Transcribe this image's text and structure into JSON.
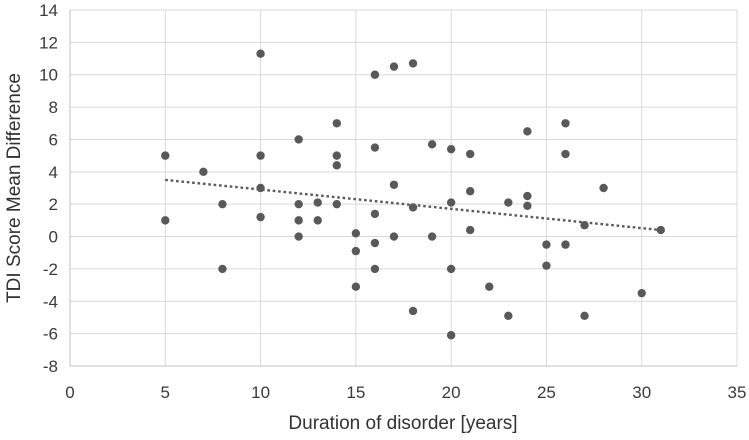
{
  "chart_data": {
    "type": "scatter",
    "title": "",
    "xlabel": "Duration of disorder [years]",
    "ylabel": "TDI Score Mean Difference",
    "xlim": [
      0,
      35
    ],
    "ylim": [
      -8,
      14
    ],
    "xticks": [
      0,
      5,
      10,
      15,
      20,
      25,
      30,
      35
    ],
    "yticks": [
      -8,
      -6,
      -4,
      -2,
      0,
      2,
      4,
      6,
      8,
      10,
      12,
      14
    ],
    "grid": true,
    "legend_position": "none",
    "marker_color": "#595959",
    "gridline_color": "#d9d9d9",
    "axis_line_color": "#c0c0c0",
    "tick_label_color": "#3a3a3a",
    "axis_title_color": "#323232",
    "points": [
      [
        5,
        5
      ],
      [
        5,
        1
      ],
      [
        7,
        4
      ],
      [
        8,
        2
      ],
      [
        8,
        -2
      ],
      [
        10,
        11.3
      ],
      [
        10,
        5
      ],
      [
        10,
        3
      ],
      [
        10,
        1.2
      ],
      [
        12,
        6
      ],
      [
        12,
        2
      ],
      [
        12,
        1
      ],
      [
        12,
        0
      ],
      [
        13,
        2.1
      ],
      [
        13,
        1
      ],
      [
        14,
        7
      ],
      [
        14,
        5
      ],
      [
        14,
        4.4
      ],
      [
        14,
        2
      ],
      [
        15,
        0.2
      ],
      [
        15,
        -0.9
      ],
      [
        15,
        -3.1
      ],
      [
        16,
        10
      ],
      [
        16,
        5.5
      ],
      [
        16,
        1.4
      ],
      [
        16,
        -0.4
      ],
      [
        16,
        -2
      ],
      [
        17,
        10.5
      ],
      [
        17,
        3.2
      ],
      [
        17,
        0
      ],
      [
        18,
        10.7
      ],
      [
        18,
        1.8
      ],
      [
        18,
        -4.6
      ],
      [
        19,
        5.7
      ],
      [
        19,
        0
      ],
      [
        20,
        5.4
      ],
      [
        20,
        2.1
      ],
      [
        20,
        -2
      ],
      [
        20,
        -6.1
      ],
      [
        21,
        5.1
      ],
      [
        21,
        2.8
      ],
      [
        21,
        0.4
      ],
      [
        22,
        -3.1
      ],
      [
        23,
        2.1
      ],
      [
        23,
        -4.9
      ],
      [
        24,
        6.5
      ],
      [
        24,
        2.5
      ],
      [
        24,
        1.9
      ],
      [
        25,
        -0.5
      ],
      [
        25,
        -1.8
      ],
      [
        26,
        7
      ],
      [
        26,
        5.1
      ],
      [
        26,
        -0.5
      ],
      [
        27,
        0.7
      ],
      [
        27,
        -4.9
      ],
      [
        28,
        3
      ],
      [
        30,
        -3.5
      ],
      [
        31,
        0.4
      ]
    ],
    "trendline": {
      "style": "dotted",
      "color": "#595959",
      "x1": 5,
      "y1": 3.5,
      "x2": 31,
      "y2": 0.4
    }
  }
}
